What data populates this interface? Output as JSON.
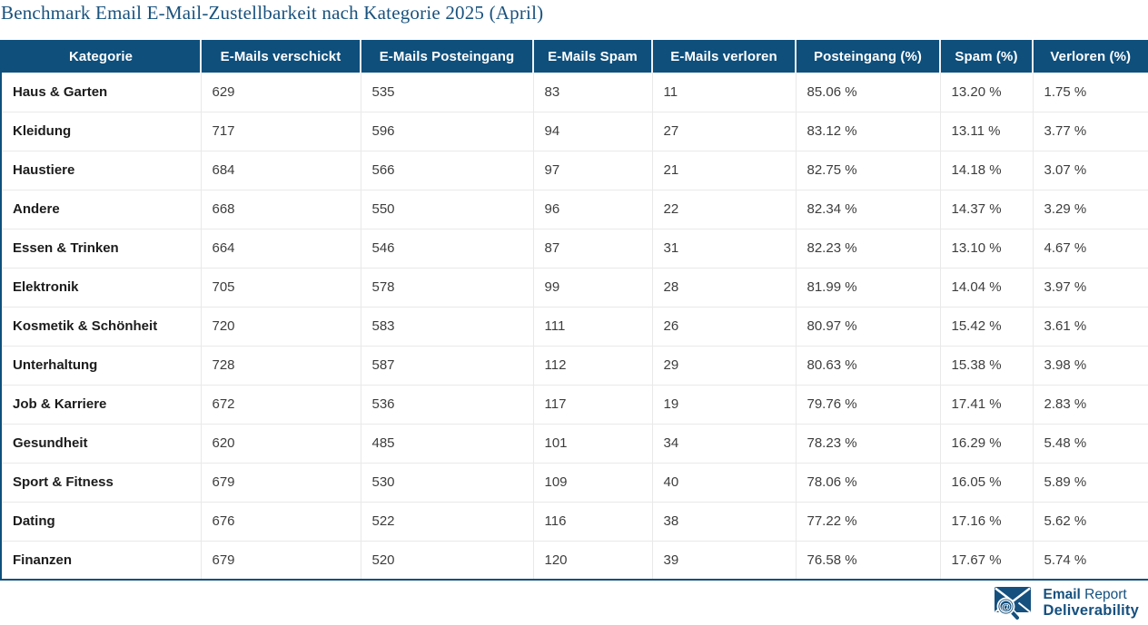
{
  "chart_data": {
    "type": "table",
    "title": "Benchmark Email E-Mail-Zustellbarkeit nach Kategorie 2025 (April)",
    "columns": [
      "Kategorie",
      "E-Mails verschickt",
      "E-Mails Posteingang",
      "E-Mails Spam",
      "E-Mails verloren",
      "Posteingang (%)",
      "Spam (%)",
      "Verloren (%)"
    ],
    "rows": [
      [
        "Haus & Garten",
        "629",
        "535",
        "83",
        "11",
        "85.06 %",
        "13.20 %",
        "1.75 %"
      ],
      [
        "Kleidung",
        "717",
        "596",
        "94",
        "27",
        "83.12 %",
        "13.11 %",
        "3.77 %"
      ],
      [
        "Haustiere",
        "684",
        "566",
        "97",
        "21",
        "82.75 %",
        "14.18 %",
        "3.07 %"
      ],
      [
        "Andere",
        "668",
        "550",
        "96",
        "22",
        "82.34 %",
        "14.37 %",
        "3.29 %"
      ],
      [
        "Essen & Trinken",
        "664",
        "546",
        "87",
        "31",
        "82.23 %",
        "13.10 %",
        "4.67 %"
      ],
      [
        "Elektronik",
        "705",
        "578",
        "99",
        "28",
        "81.99 %",
        "14.04 %",
        "3.97 %"
      ],
      [
        "Kosmetik & Schönheit",
        "720",
        "583",
        "111",
        "26",
        "80.97 %",
        "15.42 %",
        "3.61 %"
      ],
      [
        "Unterhaltung",
        "728",
        "587",
        "112",
        "29",
        "80.63 %",
        "15.38 %",
        "3.98 %"
      ],
      [
        "Job & Karriere",
        "672",
        "536",
        "117",
        "19",
        "79.76 %",
        "17.41 %",
        "2.83 %"
      ],
      [
        "Gesundheit",
        "620",
        "485",
        "101",
        "34",
        "78.23 %",
        "16.29 %",
        "5.48 %"
      ],
      [
        "Sport & Fitness",
        "679",
        "530",
        "109",
        "40",
        "78.06 %",
        "16.05 %",
        "5.89 %"
      ],
      [
        "Dating",
        "676",
        "522",
        "116",
        "38",
        "77.22 %",
        "17.16 %",
        "5.62 %"
      ],
      [
        "Finanzen",
        "679",
        "520",
        "120",
        "39",
        "76.58 %",
        "17.67 %",
        "5.74 %"
      ]
    ]
  },
  "logo": {
    "line1_bold": "Email",
    "line1_regular": "Report",
    "line2": "Deliverability",
    "icon": "envelope-magnifier-at-icon"
  },
  "colors": {
    "header_bg": "#0e4f7c",
    "title": "#19527e",
    "logo_blue": "#15507f",
    "row_border": "#e9e9e9",
    "cell_text": "#3d3d3d",
    "category_text": "#1c1c1c",
    "header_text": "#ffffff"
  }
}
